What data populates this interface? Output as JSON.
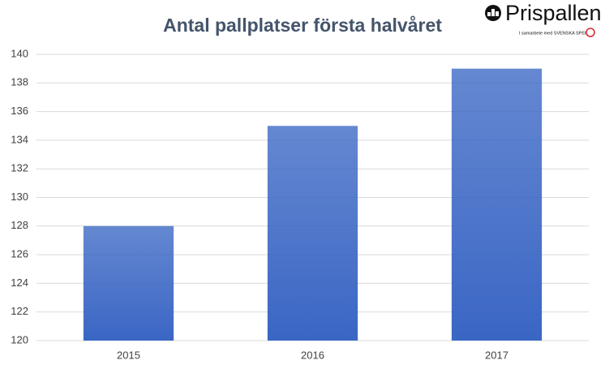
{
  "chart_data": {
    "type": "bar",
    "title": "Antal pallplatser första halvåret",
    "categories": [
      "2015",
      "2016",
      "2017"
    ],
    "values": [
      128,
      135,
      139
    ],
    "color": "#3a66c4",
    "ylim": [
      120,
      140
    ],
    "yticks": [
      120,
      122,
      124,
      126,
      128,
      130,
      132,
      134,
      136,
      138,
      140
    ],
    "grid": true
  },
  "logo": {
    "name": "Prispallen",
    "tagline": "I samarbete med SVENSKA SPEL"
  }
}
